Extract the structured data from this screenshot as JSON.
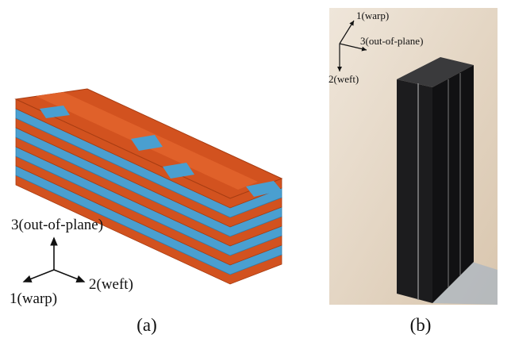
{
  "panels": [
    {
      "label": "(a)",
      "axes": {
        "up": "3(out-of-plane)",
        "left": "1(warp)",
        "right": "2(weft)"
      }
    },
    {
      "label": "(b)",
      "axes": {
        "up": "1(warp)",
        "right": "3(out-of-plane)",
        "down": "2(weft)"
      }
    }
  ]
}
